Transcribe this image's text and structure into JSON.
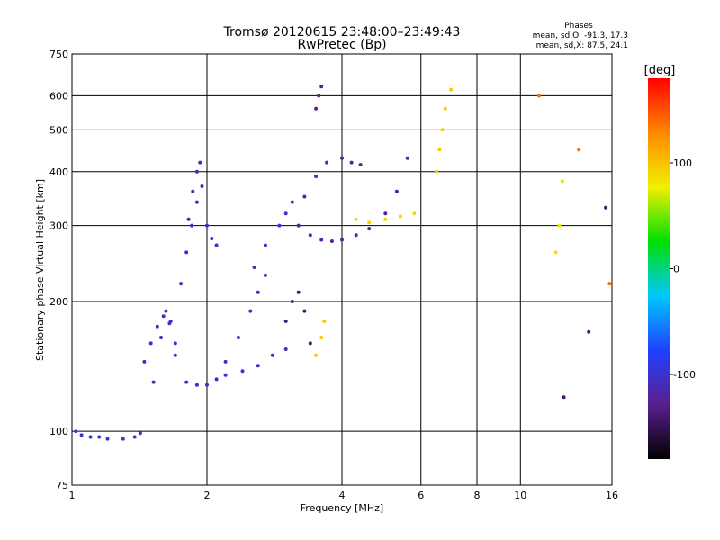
{
  "chart_data": {
    "type": "scatter",
    "title": "Tromsø 20120615 23:48:00–23:49:43",
    "subtitle": "RwPretec (Bp)",
    "xlabel": "Frequency [MHz]",
    "ylabel": "Stationary phase Virtual Height [km]",
    "x_scale": "log",
    "y_scale": "log",
    "xlim": [
      1,
      16
    ],
    "ylim": [
      75,
      750
    ],
    "x_ticks": [
      1,
      2,
      4,
      6,
      8,
      10,
      16
    ],
    "y_ticks": [
      75,
      100,
      200,
      300,
      400,
      500,
      600,
      750
    ],
    "grid": true,
    "stats": {
      "heading": "Phases",
      "line_o": "mean, sd,O: -91.3, 17.3",
      "line_x": "mean, sd,X:  87.5, 24.1"
    },
    "colorbar": {
      "label": "[deg]",
      "range": [
        -180,
        180
      ],
      "ticks": [
        100,
        0,
        -100
      ],
      "stops": [
        "#000000",
        "#5a1f8f",
        "#2040ff",
        "#00c8ff",
        "#00e000",
        "#f0f000",
        "#ff8800",
        "#ff0000"
      ]
    },
    "series": [
      {
        "phase": -95,
        "x": [
          1.02,
          1.05,
          1.1,
          1.15,
          1.2,
          1.3,
          1.38,
          1.42
        ],
        "y": [
          100,
          98,
          97,
          97,
          96,
          96,
          97,
          99
        ]
      },
      {
        "phase": -100,
        "x": [
          1.45,
          1.5,
          1.55,
          1.6,
          1.65,
          1.7,
          1.8,
          1.9,
          2.0,
          2.1,
          2.2,
          2.4,
          2.6,
          2.8,
          3.0
        ],
        "y": [
          145,
          160,
          175,
          185,
          178,
          150,
          130,
          128,
          128,
          132,
          135,
          138,
          142,
          150,
          155
        ]
      },
      {
        "phase": -105,
        "x": [
          1.52,
          1.58,
          1.62,
          1.66,
          1.7
        ],
        "y": [
          130,
          165,
          190,
          180,
          160
        ]
      },
      {
        "phase": -100,
        "x": [
          1.75,
          1.8,
          1.85,
          1.9,
          1.95,
          2.0,
          2.05,
          2.1
        ],
        "y": [
          220,
          260,
          300,
          340,
          370,
          300,
          280,
          270
        ]
      },
      {
        "phase": -110,
        "x": [
          1.82,
          1.86,
          1.9,
          1.93
        ],
        "y": [
          310,
          360,
          400,
          420
        ]
      },
      {
        "phase": -100,
        "x": [
          2.2,
          2.35,
          2.5,
          2.6,
          2.7
        ],
        "y": [
          145,
          165,
          190,
          210,
          230
        ]
      },
      {
        "phase": -95,
        "x": [
          2.55,
          2.7,
          2.9,
          3.0,
          3.1
        ],
        "y": [
          240,
          270,
          300,
          320,
          340
        ]
      },
      {
        "phase": -140,
        "x": [
          3.0,
          3.1,
          3.2,
          3.3,
          3.4
        ],
        "y": [
          180,
          200,
          210,
          190,
          160
        ]
      },
      {
        "phase": -120,
        "x": [
          3.2,
          3.4,
          3.6,
          3.8,
          4.0,
          4.3,
          4.6,
          5.0,
          5.3,
          5.6
        ],
        "y": [
          300,
          285,
          278,
          276,
          278,
          285,
          295,
          320,
          360,
          430
        ]
      },
      {
        "phase": -105,
        "x": [
          3.3,
          3.5,
          3.7
        ],
        "y": [
          350,
          390,
          420
        ]
      },
      {
        "phase": -130,
        "x": [
          3.5,
          3.55,
          3.6
        ],
        "y": [
          560,
          600,
          630
        ]
      },
      {
        "phase": -125,
        "x": [
          4.0,
          4.2,
          4.4
        ],
        "y": [
          430,
          420,
          415
        ]
      },
      {
        "phase": 95,
        "x": [
          3.5,
          3.6,
          3.65
        ],
        "y": [
          150,
          165,
          180
        ]
      },
      {
        "phase": 90,
        "x": [
          4.3,
          4.6,
          5.0,
          5.4,
          5.8
        ],
        "y": [
          310,
          305,
          310,
          315,
          320
        ]
      },
      {
        "phase": 95,
        "x": [
          6.5,
          6.6,
          6.7,
          6.8,
          7.0
        ],
        "y": [
          400,
          450,
          500,
          560,
          620
        ]
      },
      {
        "phase": 85,
        "x": [
          12.0,
          12.2,
          12.4
        ],
        "y": [
          260,
          300,
          380
        ]
      },
      {
        "phase": 140,
        "x": [
          11.0,
          13.5,
          15.8
        ],
        "y": [
          600,
          450,
          220
        ]
      },
      {
        "phase": -140,
        "x": [
          12.5,
          14.2,
          15.5
        ],
        "y": [
          120,
          170,
          330
        ]
      }
    ]
  }
}
